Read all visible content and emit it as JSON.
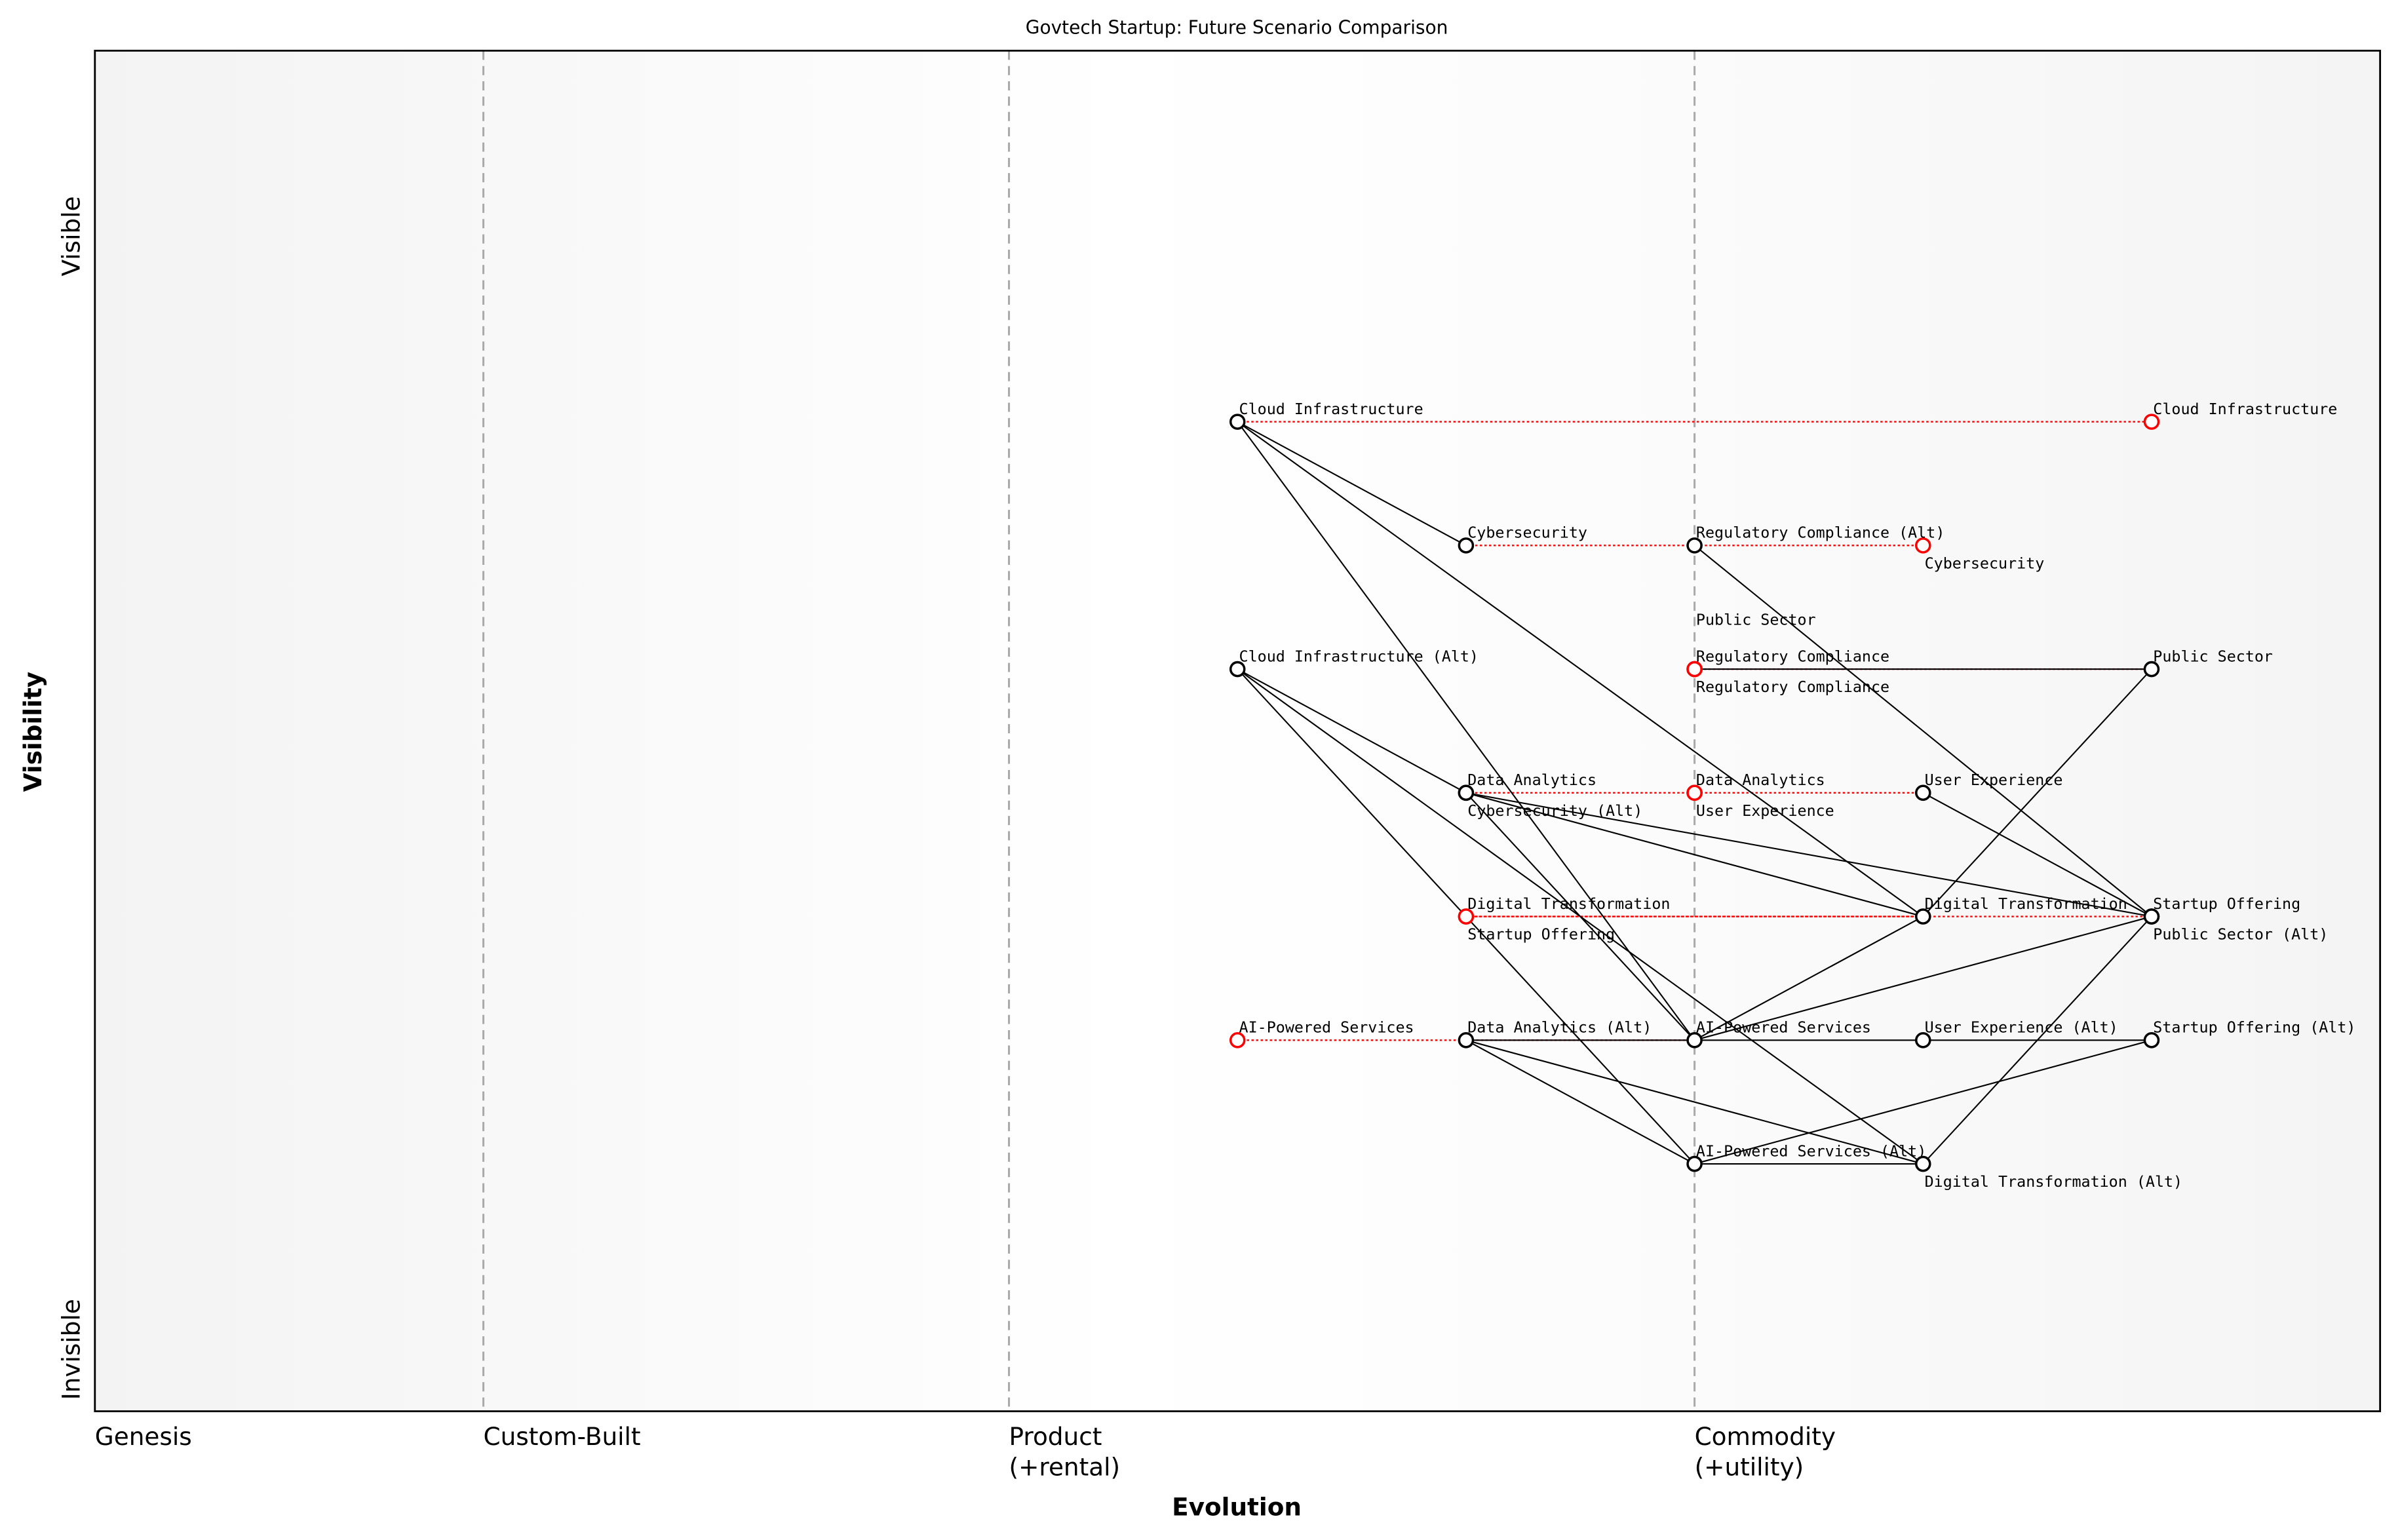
{
  "chart_data": {
    "type": "wardley-map",
    "title": "Govtech Startup: Future Scenario Comparison",
    "xlabel": "Evolution",
    "ylabel": "Visibility",
    "xlim": [
      0,
      1
    ],
    "ylim": [
      0,
      1.1
    ],
    "x_stages": [
      {
        "value": 0.0,
        "label": "Genesis",
        "label2": ""
      },
      {
        "value": 0.17,
        "label": "Custom-Built",
        "label2": ""
      },
      {
        "value": 0.4,
        "label": "Product",
        "label2": "(+rental)"
      },
      {
        "value": 0.7,
        "label": "Commodity",
        "label2": "(+utility)"
      }
    ],
    "y_ticks": [
      {
        "value": 0.95,
        "label": "Visible"
      },
      {
        "value": 0.05,
        "label": "Invisible"
      }
    ],
    "grid": false,
    "colors": {
      "node": "#000000",
      "evolved_node": "#ff0000",
      "link": "#000000",
      "evolution_link": "#ff0000",
      "stage_divider": "#aaaaaa"
    },
    "components": [
      {
        "name": "Cloud Infrastructure",
        "x": 0.5,
        "y": 0.8,
        "kind": "current"
      },
      {
        "name": "Cybersecurity",
        "x": 0.6,
        "y": 0.7,
        "kind": "current"
      },
      {
        "name": "Regulatory Compliance",
        "x": 0.7,
        "y": 0.6,
        "kind": "current"
      },
      {
        "name": "Public Sector",
        "x": 0.9,
        "y": 0.6,
        "kind": "current"
      },
      {
        "name": "Data Analytics",
        "x": 0.6,
        "y": 0.5,
        "kind": "current"
      },
      {
        "name": "User Experience",
        "x": 0.8,
        "y": 0.5,
        "kind": "current"
      },
      {
        "name": "Digital Transformation",
        "x": 0.8,
        "y": 0.4,
        "kind": "current"
      },
      {
        "name": "Startup Offering",
        "x": 0.9,
        "y": 0.4,
        "kind": "current"
      },
      {
        "name": "AI-Powered Services",
        "x": 0.7,
        "y": 0.3,
        "kind": "current"
      },
      {
        "name": "Regulatory Compliance (Alt)",
        "x": 0.7,
        "y": 0.7,
        "kind": "current"
      },
      {
        "name": "Cloud Infrastructure (Alt)",
        "x": 0.5,
        "y": 0.6,
        "kind": "current"
      },
      {
        "name": "Cybersecurity (Alt)",
        "x": 0.6,
        "y": 0.5,
        "kind": "current"
      },
      {
        "name": "Public Sector (Alt)",
        "x": 0.9,
        "y": 0.4,
        "kind": "current"
      },
      {
        "name": "Data Analytics (Alt)",
        "x": 0.6,
        "y": 0.3,
        "kind": "current"
      },
      {
        "name": "User Experience (Alt)",
        "x": 0.8,
        "y": 0.3,
        "kind": "current"
      },
      {
        "name": "Startup Offering (Alt)",
        "x": 0.9,
        "y": 0.3,
        "kind": "current"
      },
      {
        "name": "AI-Powered Services (Alt)",
        "x": 0.7,
        "y": 0.2,
        "kind": "current"
      },
      {
        "name": "Digital Transformation (Alt)",
        "x": 0.8,
        "y": 0.2,
        "kind": "current"
      },
      {
        "name": "Cloud Infrastructure",
        "x": 0.9,
        "y": 0.8,
        "kind": "evolved"
      },
      {
        "name": "Cybersecurity",
        "x": 0.8,
        "y": 0.7,
        "kind": "evolved"
      },
      {
        "name": "Regulatory Compliance",
        "x": 0.7,
        "y": 0.6,
        "kind": "evolved"
      },
      {
        "name": "Public Sector",
        "x": 0.7,
        "y": 0.6,
        "kind": "evolved"
      },
      {
        "name": "Data Analytics",
        "x": 0.7,
        "y": 0.5,
        "kind": "evolved"
      },
      {
        "name": "User Experience",
        "x": 0.7,
        "y": 0.5,
        "kind": "evolved"
      },
      {
        "name": "Digital Transformation",
        "x": 0.6,
        "y": 0.4,
        "kind": "evolved"
      },
      {
        "name": "Startup Offering",
        "x": 0.6,
        "y": 0.4,
        "kind": "evolved"
      },
      {
        "name": "AI-Powered Services",
        "x": 0.5,
        "y": 0.3,
        "kind": "evolved"
      }
    ],
    "links": [
      [
        "Cybersecurity",
        "Cloud Infrastructure"
      ],
      [
        "Digital Transformation",
        "Cloud Infrastructure"
      ],
      [
        "AI-Powered Services",
        "Cloud Infrastructure"
      ],
      [
        "Public Sector",
        "Regulatory Compliance"
      ],
      [
        "Public Sector",
        "Digital Transformation"
      ],
      [
        "Startup Offering",
        "User Experience"
      ],
      [
        "Startup Offering",
        "Data Analytics"
      ],
      [
        "Startup Offering",
        "AI-Powered Services"
      ],
      [
        "Digital Transformation",
        "Data Analytics"
      ],
      [
        "Digital Transformation",
        "AI-Powered Services"
      ],
      [
        "AI-Powered Services",
        "Data Analytics"
      ],
      [
        "Public Sector (Alt)",
        "Regulatory Compliance (Alt)"
      ],
      [
        "Public Sector (Alt)",
        "Digital Transformation (Alt)"
      ],
      [
        "Startup Offering (Alt)",
        "User Experience (Alt)"
      ],
      [
        "Startup Offering (Alt)",
        "AI-Powered Services (Alt)"
      ],
      [
        "User Experience (Alt)",
        "Data Analytics (Alt)"
      ],
      [
        "Digital Transformation (Alt)",
        "Data Analytics (Alt)"
      ],
      [
        "Digital Transformation (Alt)",
        "AI-Powered Services (Alt)"
      ],
      [
        "Digital Transformation (Alt)",
        "Cloud Infrastructure (Alt)"
      ],
      [
        "AI-Powered Services (Alt)",
        "Data Analytics (Alt)"
      ],
      [
        "AI-Powered Services (Alt)",
        "Cloud Infrastructure (Alt)"
      ],
      [
        "Cybersecurity (Alt)",
        "Cloud Infrastructure (Alt)"
      ]
    ],
    "evolutions": [
      {
        "name": "Cloud Infrastructure",
        "from": 0.5,
        "to": 0.9,
        "y": 0.8
      },
      {
        "name": "Cybersecurity",
        "from": 0.6,
        "to": 0.8,
        "y": 0.7
      },
      {
        "name": "Public Sector",
        "from": 0.9,
        "to": 0.7,
        "y": 0.6
      },
      {
        "name": "Data Analytics",
        "from": 0.6,
        "to": 0.7,
        "y": 0.5
      },
      {
        "name": "User Experience",
        "from": 0.8,
        "to": 0.7,
        "y": 0.5
      },
      {
        "name": "Digital Transformation",
        "from": 0.8,
        "to": 0.6,
        "y": 0.4
      },
      {
        "name": "Startup Offering",
        "from": 0.9,
        "to": 0.6,
        "y": 0.4
      },
      {
        "name": "AI-Powered Services",
        "from": 0.7,
        "to": 0.5,
        "y": 0.3
      }
    ]
  }
}
